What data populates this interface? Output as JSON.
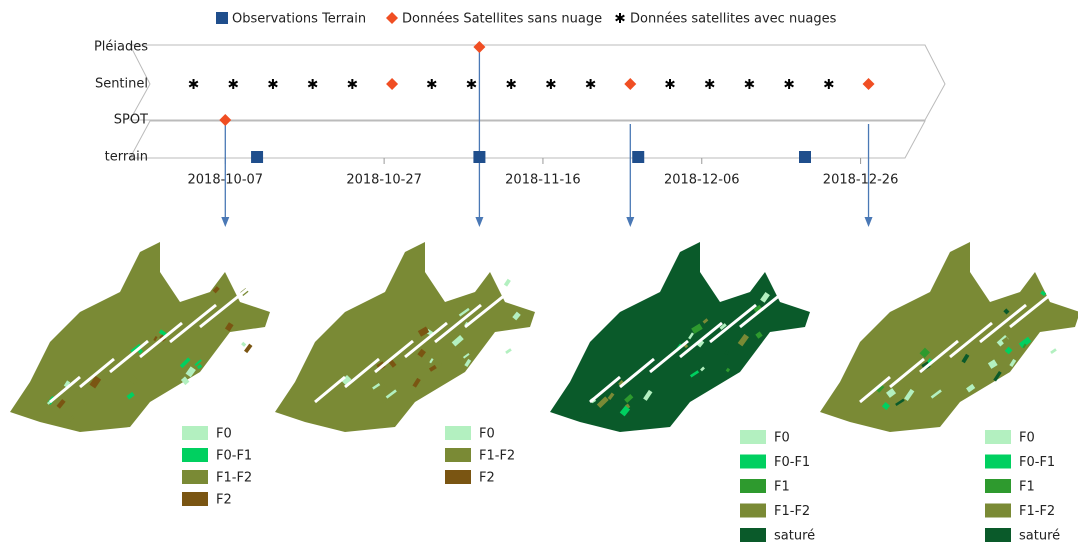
{
  "chart_data": {
    "type": "timeline",
    "rows": [
      "Pléiades",
      "Sentinel",
      "SPOT",
      "terrain"
    ],
    "xlim": [
      "2018-09-25",
      "2019-01-05"
    ],
    "xticks": [
      "2018-10-07",
      "2018-10-27",
      "2018-11-16",
      "2018-12-06",
      "2018-12-26"
    ],
    "series": [
      {
        "name": "Observations Terrain",
        "color": "#1f4e8c",
        "marker": "square",
        "rows": [
          "terrain",
          "terrain",
          "terrain",
          "terrain"
        ],
        "x": [
          "2018-10-11",
          "2018-11-08",
          "2018-11-28",
          "2018-12-19"
        ]
      },
      {
        "name": "Données Satellites sans nuage",
        "color": "#f04e23",
        "marker": "diamond",
        "rows": [
          "SPOT",
          "Sentinel",
          "Pléiades",
          "Sentinel",
          "Sentinel"
        ],
        "x": [
          "2018-10-07",
          "2018-10-28",
          "2018-11-08",
          "2018-11-27",
          "2018-12-27"
        ]
      },
      {
        "name": "Données satellites avec nuages",
        "color": "#000000",
        "marker": "asterisk",
        "rows": [
          "Sentinel",
          "Sentinel",
          "Sentinel",
          "Sentinel",
          "Sentinel",
          "Sentinel",
          "Sentinel",
          "Sentinel",
          "Sentinel",
          "Sentinel",
          "Sentinel",
          "Sentinel",
          "Sentinel",
          "Sentinel",
          "Sentinel"
        ],
        "x": [
          "2018-10-03",
          "2018-10-08",
          "2018-10-13",
          "2018-10-18",
          "2018-10-23",
          "2018-11-02",
          "2018-11-07",
          "2018-11-12",
          "2018-11-17",
          "2018-11-22",
          "2018-12-02",
          "2018-12-07",
          "2018-12-12",
          "2018-12-17",
          "2018-12-22"
        ]
      }
    ]
  },
  "maps": [
    {
      "date": "2018-10-07",
      "legend": [
        {
          "label": "F0",
          "color": "#b3f0c0"
        },
        {
          "label": "F0-F1",
          "color": "#00d060"
        },
        {
          "label": "F1-F2",
          "color": "#7a8a35"
        },
        {
          "label": "F2",
          "color": "#7a5512"
        }
      ]
    },
    {
      "date": "2018-11-08",
      "legend": [
        {
          "label": "F0",
          "color": "#b3f0c0"
        },
        {
          "label": "F1-F2",
          "color": "#7a8a35"
        },
        {
          "label": "F2",
          "color": "#7a5512"
        }
      ]
    },
    {
      "date": "2018-11-27",
      "legend": [
        {
          "label": "F0",
          "color": "#b3f0c0"
        },
        {
          "label": "F0-F1",
          "color": "#00d060"
        },
        {
          "label": "F1",
          "color": "#2e9a2e"
        },
        {
          "label": "F1-F2",
          "color": "#7a8a35"
        },
        {
          "label": "saturé",
          "color": "#0a5a2a"
        }
      ]
    },
    {
      "date": "2018-12-27",
      "legend": [
        {
          "label": "F0",
          "color": "#b3f0c0"
        },
        {
          "label": "F0-F1",
          "color": "#00d060"
        },
        {
          "label": "F1",
          "color": "#2e9a2e"
        },
        {
          "label": "F1-F2",
          "color": "#7a8a35"
        },
        {
          "label": "saturé",
          "color": "#0a5a2a"
        }
      ]
    }
  ]
}
